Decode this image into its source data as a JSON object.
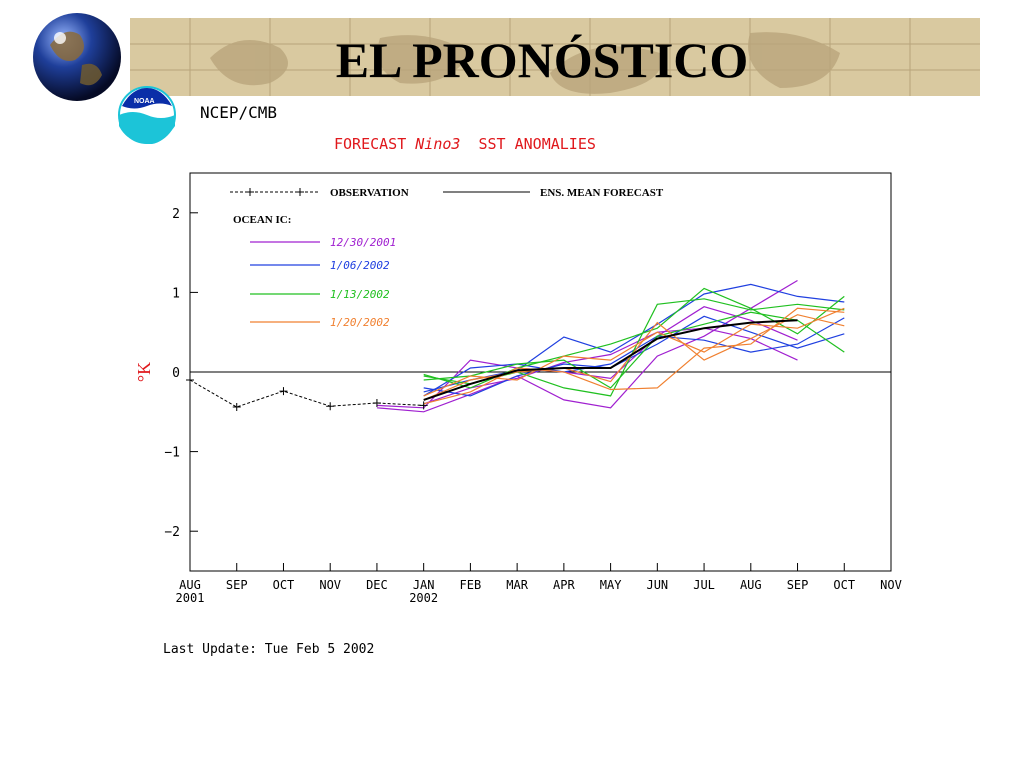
{
  "slide": {
    "title": "EL PRONÓSTICO",
    "org": "NCEP/CMB",
    "logo_text": "NOAA",
    "chart_title_a": "FORECAST ",
    "chart_title_b": "Nino3",
    "chart_title_c": "  SST ANOMALIES",
    "last_update": "Last Update: Tue Feb 5 2002"
  },
  "colors": {
    "banner": "#d9c9a0",
    "title_red": "#e0181c",
    "purple": "#a020d0",
    "blue": "#2040e0",
    "green": "#20c020",
    "orange": "#f08030"
  },
  "chart_data": {
    "type": "line",
    "title": "FORECAST Nino3 SST ANOMALIES",
    "ylabel": "°K",
    "ylim": [
      -2.5,
      2.5
    ],
    "xlim": [
      0,
      15
    ],
    "x_ticks": [
      "AUG\n2001",
      "SEP",
      "OCT",
      "NOV",
      "DEC",
      "JAN\n2002",
      "FEB",
      "MAR",
      "APR",
      "MAY",
      "JUN",
      "JUL",
      "AUG",
      "SEP",
      "OCT",
      "NOV"
    ],
    "y_ticks": [
      2,
      1,
      0,
      -1,
      -2
    ],
    "legend": {
      "observation": "OBSERVATION",
      "ens_mean": "ENS. MEAN FORECAST",
      "ocean_ic": "OCEAN IC:",
      "entries": [
        {
          "label": "12/30/2001",
          "color": "#a020d0"
        },
        {
          "label": "1/06/2002",
          "color": "#2040e0"
        },
        {
          "label": "1/13/2002",
          "color": "#20c020"
        },
        {
          "label": "1/20/2002",
          "color": "#f08030"
        }
      ]
    },
    "observation": {
      "x": [
        0,
        1,
        2,
        3,
        4,
        5
      ],
      "y": [
        -0.1,
        -0.44,
        -0.24,
        -0.43,
        -0.39,
        -0.42
      ]
    },
    "ens_mean": {
      "x": [
        5,
        6,
        7,
        8,
        9,
        10,
        11,
        12,
        13
      ],
      "y": [
        -0.35,
        -0.15,
        0.02,
        0.05,
        0.05,
        0.42,
        0.55,
        0.62,
        0.65
      ]
    },
    "series": [
      {
        "color": "#a020d0",
        "x": [
          4,
          5,
          6,
          7,
          8,
          9,
          10,
          11,
          12,
          13
        ],
        "y": [
          -0.45,
          -0.5,
          -0.28,
          -0.05,
          -0.35,
          -0.45,
          0.2,
          0.45,
          0.8,
          1.15
        ]
      },
      {
        "color": "#a020d0",
        "x": [
          4,
          5,
          6,
          7,
          8,
          9,
          10,
          11,
          12,
          13
        ],
        "y": [
          -0.42,
          -0.45,
          0.15,
          0.05,
          0.0,
          -0.08,
          0.45,
          0.82,
          0.65,
          0.4
        ]
      },
      {
        "color": "#a020d0",
        "x": [
          5,
          6,
          7,
          8,
          9,
          10,
          11,
          12,
          13
        ],
        "y": [
          -0.4,
          -0.2,
          -0.08,
          0.12,
          0.22,
          0.5,
          0.55,
          0.42,
          0.15
        ]
      },
      {
        "color": "#2040e0",
        "x": [
          5,
          6,
          7,
          8,
          9,
          10,
          11,
          12,
          13,
          14
        ],
        "y": [
          -0.25,
          -0.1,
          0.02,
          0.44,
          0.25,
          0.6,
          0.98,
          1.1,
          0.95,
          0.88
        ]
      },
      {
        "color": "#2040e0",
        "x": [
          5,
          6,
          7,
          8,
          9,
          10,
          11,
          12,
          13,
          14
        ],
        "y": [
          -0.3,
          0.05,
          0.1,
          0.0,
          0.1,
          0.45,
          0.4,
          0.25,
          0.35,
          0.68
        ]
      },
      {
        "color": "#2040e0",
        "x": [
          5,
          6,
          7,
          8,
          9,
          10,
          11,
          12,
          13,
          14
        ],
        "y": [
          -0.2,
          -0.3,
          -0.05,
          0.1,
          0.05,
          0.35,
          0.7,
          0.5,
          0.3,
          0.48
        ]
      },
      {
        "color": "#20c020",
        "x": [
          5,
          6,
          7,
          8,
          9,
          10,
          11,
          12,
          13,
          14
        ],
        "y": [
          -0.05,
          -0.15,
          0.0,
          -0.2,
          -0.3,
          0.85,
          0.92,
          0.78,
          0.85,
          0.78
        ]
      },
      {
        "color": "#20c020",
        "x": [
          5,
          6,
          7,
          8,
          9,
          10,
          11,
          12,
          13,
          14
        ],
        "y": [
          -0.03,
          -0.2,
          0.05,
          0.2,
          0.35,
          0.55,
          1.05,
          0.8,
          0.48,
          0.95
        ]
      },
      {
        "color": "#20c020",
        "x": [
          5,
          6,
          7,
          8,
          9,
          10,
          11,
          12,
          13,
          14
        ],
        "y": [
          -0.1,
          -0.05,
          0.1,
          0.15,
          -0.2,
          0.45,
          0.6,
          0.75,
          0.65,
          0.25
        ]
      },
      {
        "color": "#f08030",
        "x": [
          5,
          6,
          7,
          8,
          9,
          10,
          11,
          12,
          13,
          14
        ],
        "y": [
          -0.35,
          -0.1,
          0.0,
          0.05,
          -0.12,
          0.62,
          0.15,
          0.42,
          0.72,
          0.58
        ]
      },
      {
        "color": "#f08030",
        "x": [
          5,
          6,
          7,
          8,
          9,
          10,
          11,
          12,
          13,
          14
        ],
        "y": [
          -0.4,
          -0.25,
          0.05,
          0.0,
          -0.22,
          -0.2,
          0.3,
          0.35,
          0.8,
          0.75
        ]
      },
      {
        "color": "#f08030",
        "x": [
          5,
          6,
          7,
          8,
          9,
          10,
          11,
          12,
          13,
          14
        ],
        "y": [
          -0.3,
          -0.05,
          -0.1,
          0.2,
          0.15,
          0.5,
          0.25,
          0.6,
          0.55,
          0.8
        ]
      }
    ]
  }
}
